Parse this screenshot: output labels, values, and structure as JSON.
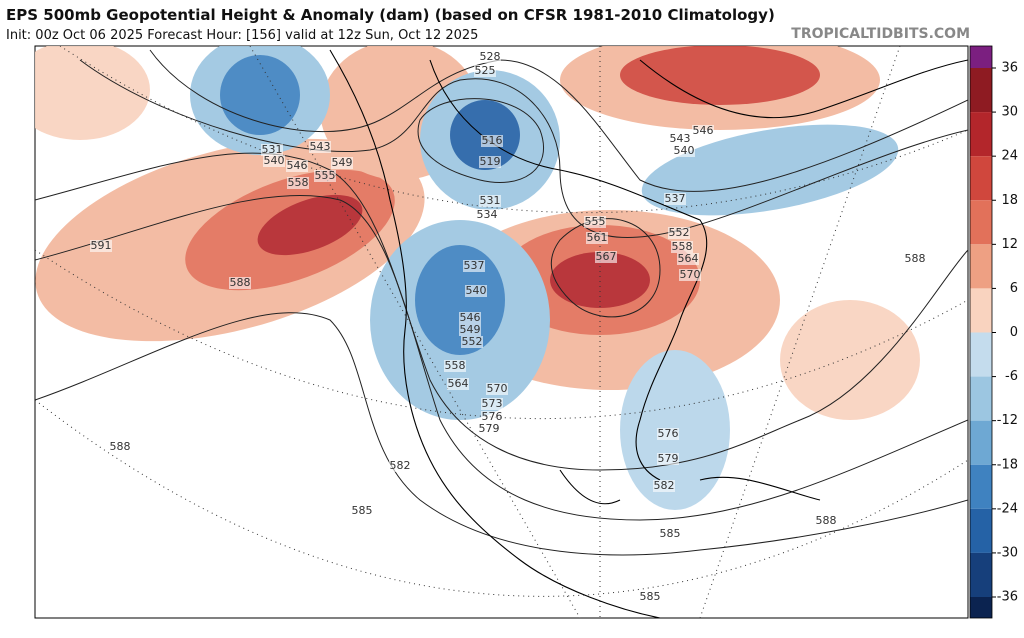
{
  "header": {
    "title": "EPS 500mb Geopotential Height & Anomaly (dam) (based on CFSR 1981-2010 Climatology)",
    "subtitle": "Init: 00z Oct 06 2025   Forecast Hour: [156]   valid at 12z Sun, Oct 12 2025",
    "watermark": "TROPICALTIDBITS.COM"
  },
  "colorbar": {
    "ticks": [
      36,
      30,
      24,
      18,
      12,
      6,
      0,
      -6,
      -12,
      -18,
      -24,
      -30,
      -36
    ],
    "colors": [
      "#7b1f80",
      "#8e1b22",
      "#b3262b",
      "#d0473d",
      "#e2715a",
      "#eea083",
      "#f9d3bf",
      "#c4dced",
      "#9cc6e1",
      "#6ea8d3",
      "#3f82c0",
      "#2562a6",
      "#163f7b",
      "#0b2350"
    ]
  },
  "contour_labels": [
    "528",
    "525",
    "531",
    "540",
    "543",
    "546",
    "549",
    "555",
    "558",
    "516",
    "519",
    "531",
    "534",
    "537",
    "540",
    "546",
    "549",
    "552",
    "558",
    "564",
    "570",
    "573",
    "576",
    "579",
    "582",
    "585",
    "588",
    "591",
    "588",
    "537",
    "540",
    "543",
    "546",
    "552",
    "555",
    "558",
    "561",
    "564",
    "567",
    "570",
    "576",
    "579",
    "582",
    "585",
    "588",
    "588",
    "585"
  ]
}
